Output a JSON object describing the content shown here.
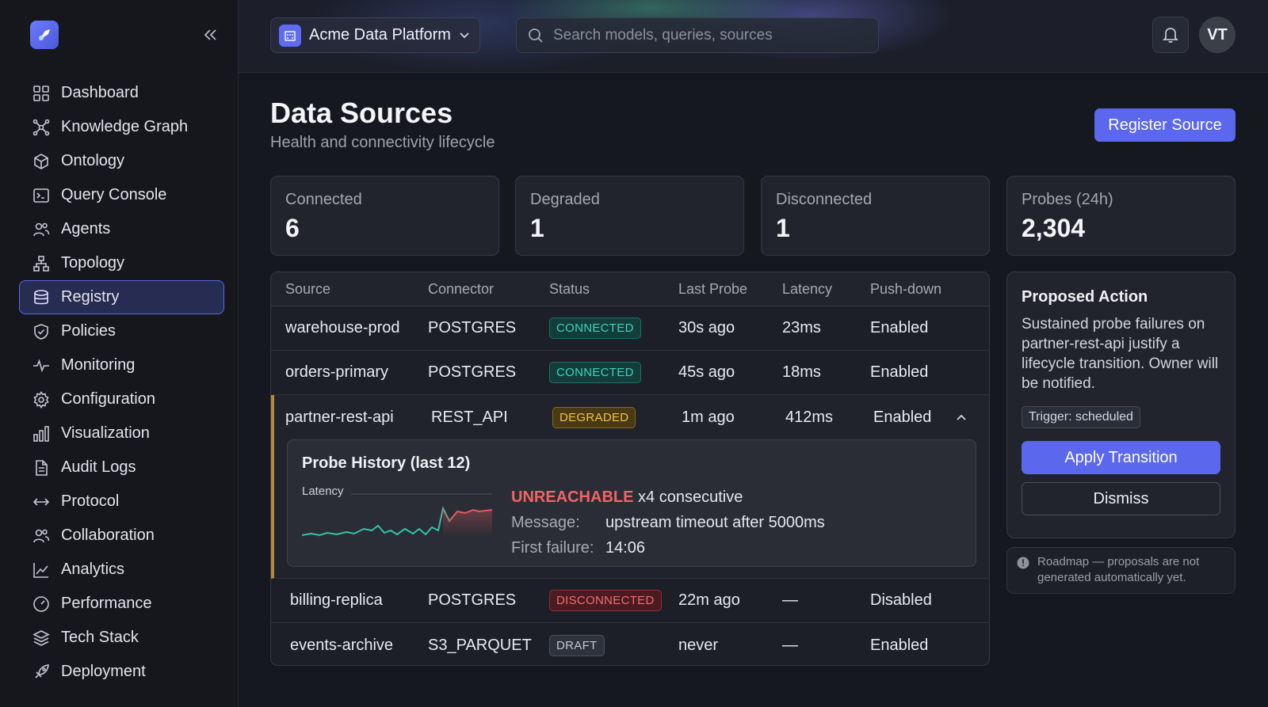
{
  "workspace": {
    "name": "Acme Data Platform"
  },
  "search": {
    "placeholder": "Search models, queries, sources"
  },
  "user": {
    "initials": "VT"
  },
  "sidebar": {
    "items": [
      {
        "label": "Dashboard",
        "icon": "grid-icon"
      },
      {
        "label": "Knowledge Graph",
        "icon": "graph-icon"
      },
      {
        "label": "Ontology",
        "icon": "cube-icon"
      },
      {
        "label": "Query Console",
        "icon": "terminal-icon"
      },
      {
        "label": "Agents",
        "icon": "users-icon"
      },
      {
        "label": "Topology",
        "icon": "topology-icon"
      },
      {
        "label": "Registry",
        "icon": "database-icon",
        "active": true
      },
      {
        "label": "Policies",
        "icon": "shield-icon"
      },
      {
        "label": "Monitoring",
        "icon": "pulse-icon"
      },
      {
        "label": "Configuration",
        "icon": "gear-icon"
      },
      {
        "label": "Visualization",
        "icon": "bar-chart-icon"
      },
      {
        "label": "Audit Logs",
        "icon": "document-icon"
      },
      {
        "label": "Protocol",
        "icon": "arrows-icon"
      },
      {
        "label": "Collaboration",
        "icon": "users-icon"
      },
      {
        "label": "Analytics",
        "icon": "line-chart-icon"
      },
      {
        "label": "Performance",
        "icon": "gauge-icon"
      },
      {
        "label": "Tech Stack",
        "icon": "layers-icon"
      },
      {
        "label": "Deployment",
        "icon": "rocket-icon"
      }
    ]
  },
  "page": {
    "title": "Data Sources",
    "subtitle": "Health and connectivity lifecycle",
    "register_label": "Register Source"
  },
  "stats": [
    {
      "label": "Connected",
      "value": "6"
    },
    {
      "label": "Degraded",
      "value": "1"
    },
    {
      "label": "Disconnected",
      "value": "1"
    },
    {
      "label": "Probes (24h)",
      "value": "2,304"
    }
  ],
  "table": {
    "headers": [
      "Source",
      "Connector",
      "Status",
      "Last Probe",
      "Latency",
      "Push-down"
    ],
    "rows": [
      {
        "source": "warehouse-prod",
        "connector": "POSTGRES",
        "status": "CONNECTED",
        "last_probe": "30s ago",
        "latency": "23ms",
        "pushdown": "Enabled"
      },
      {
        "source": "orders-primary",
        "connector": "POSTGRES",
        "status": "CONNECTED",
        "last_probe": "45s ago",
        "latency": "18ms",
        "pushdown": "Enabled"
      },
      {
        "source": "partner-rest-api",
        "connector": "REST_API",
        "status": "DEGRADED",
        "last_probe": "1m ago",
        "latency": "412ms",
        "pushdown": "Enabled"
      },
      {
        "source": "billing-replica",
        "connector": "POSTGRES",
        "status": "DISCONNECTED",
        "last_probe": "22m ago",
        "latency": "—",
        "pushdown": "Disabled"
      },
      {
        "source": "events-archive",
        "connector": "S3_PARQUET",
        "status": "DRAFT",
        "last_probe": "never",
        "latency": "—",
        "pushdown": "Enabled"
      }
    ]
  },
  "probe": {
    "title": "Probe History (last 12)",
    "latency_label": "Latency",
    "error_code": "UNREACHABLE",
    "error_count": "x4 consecutive",
    "message_key": "Message:",
    "message_value": "upstream timeout after 5000ms",
    "first_failure_key": "First failure:",
    "first_failure_value": "14:06"
  },
  "action": {
    "title": "Proposed Action",
    "body": "Sustained probe failures on partner-rest-api justify a lifecycle transition. Owner will be notified.",
    "trigger": "Trigger: scheduled",
    "apply_label": "Apply Transition",
    "dismiss_label": "Dismiss"
  },
  "roadmap_note": "Roadmap — proposals are not generated automatically yet.",
  "colors": {
    "accent": "#5b67ec",
    "connected": "#3fd3bd",
    "degraded": "#f2c14a",
    "disconnected": "#f26b6b"
  }
}
